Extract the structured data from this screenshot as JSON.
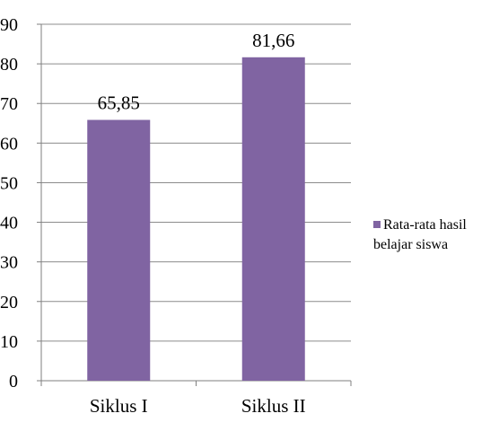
{
  "chart_data": {
    "type": "bar",
    "categories": [
      "Siklus I",
      "Siklus II"
    ],
    "series": [
      {
        "name": "Rata-rata hasil belajar siswa",
        "values": [
          65.85,
          81.66
        ],
        "labels": [
          "65,85",
          "81,66"
        ]
      }
    ],
    "ylim": [
      0,
      90
    ],
    "yticks": [
      0,
      10,
      20,
      30,
      40,
      50,
      60,
      70,
      80,
      90
    ],
    "grid": true,
    "legend_position": "right",
    "bar_color": "#8064a2",
    "grid_color": "#8c8c8c",
    "axis_color": "#7f7f7f"
  }
}
